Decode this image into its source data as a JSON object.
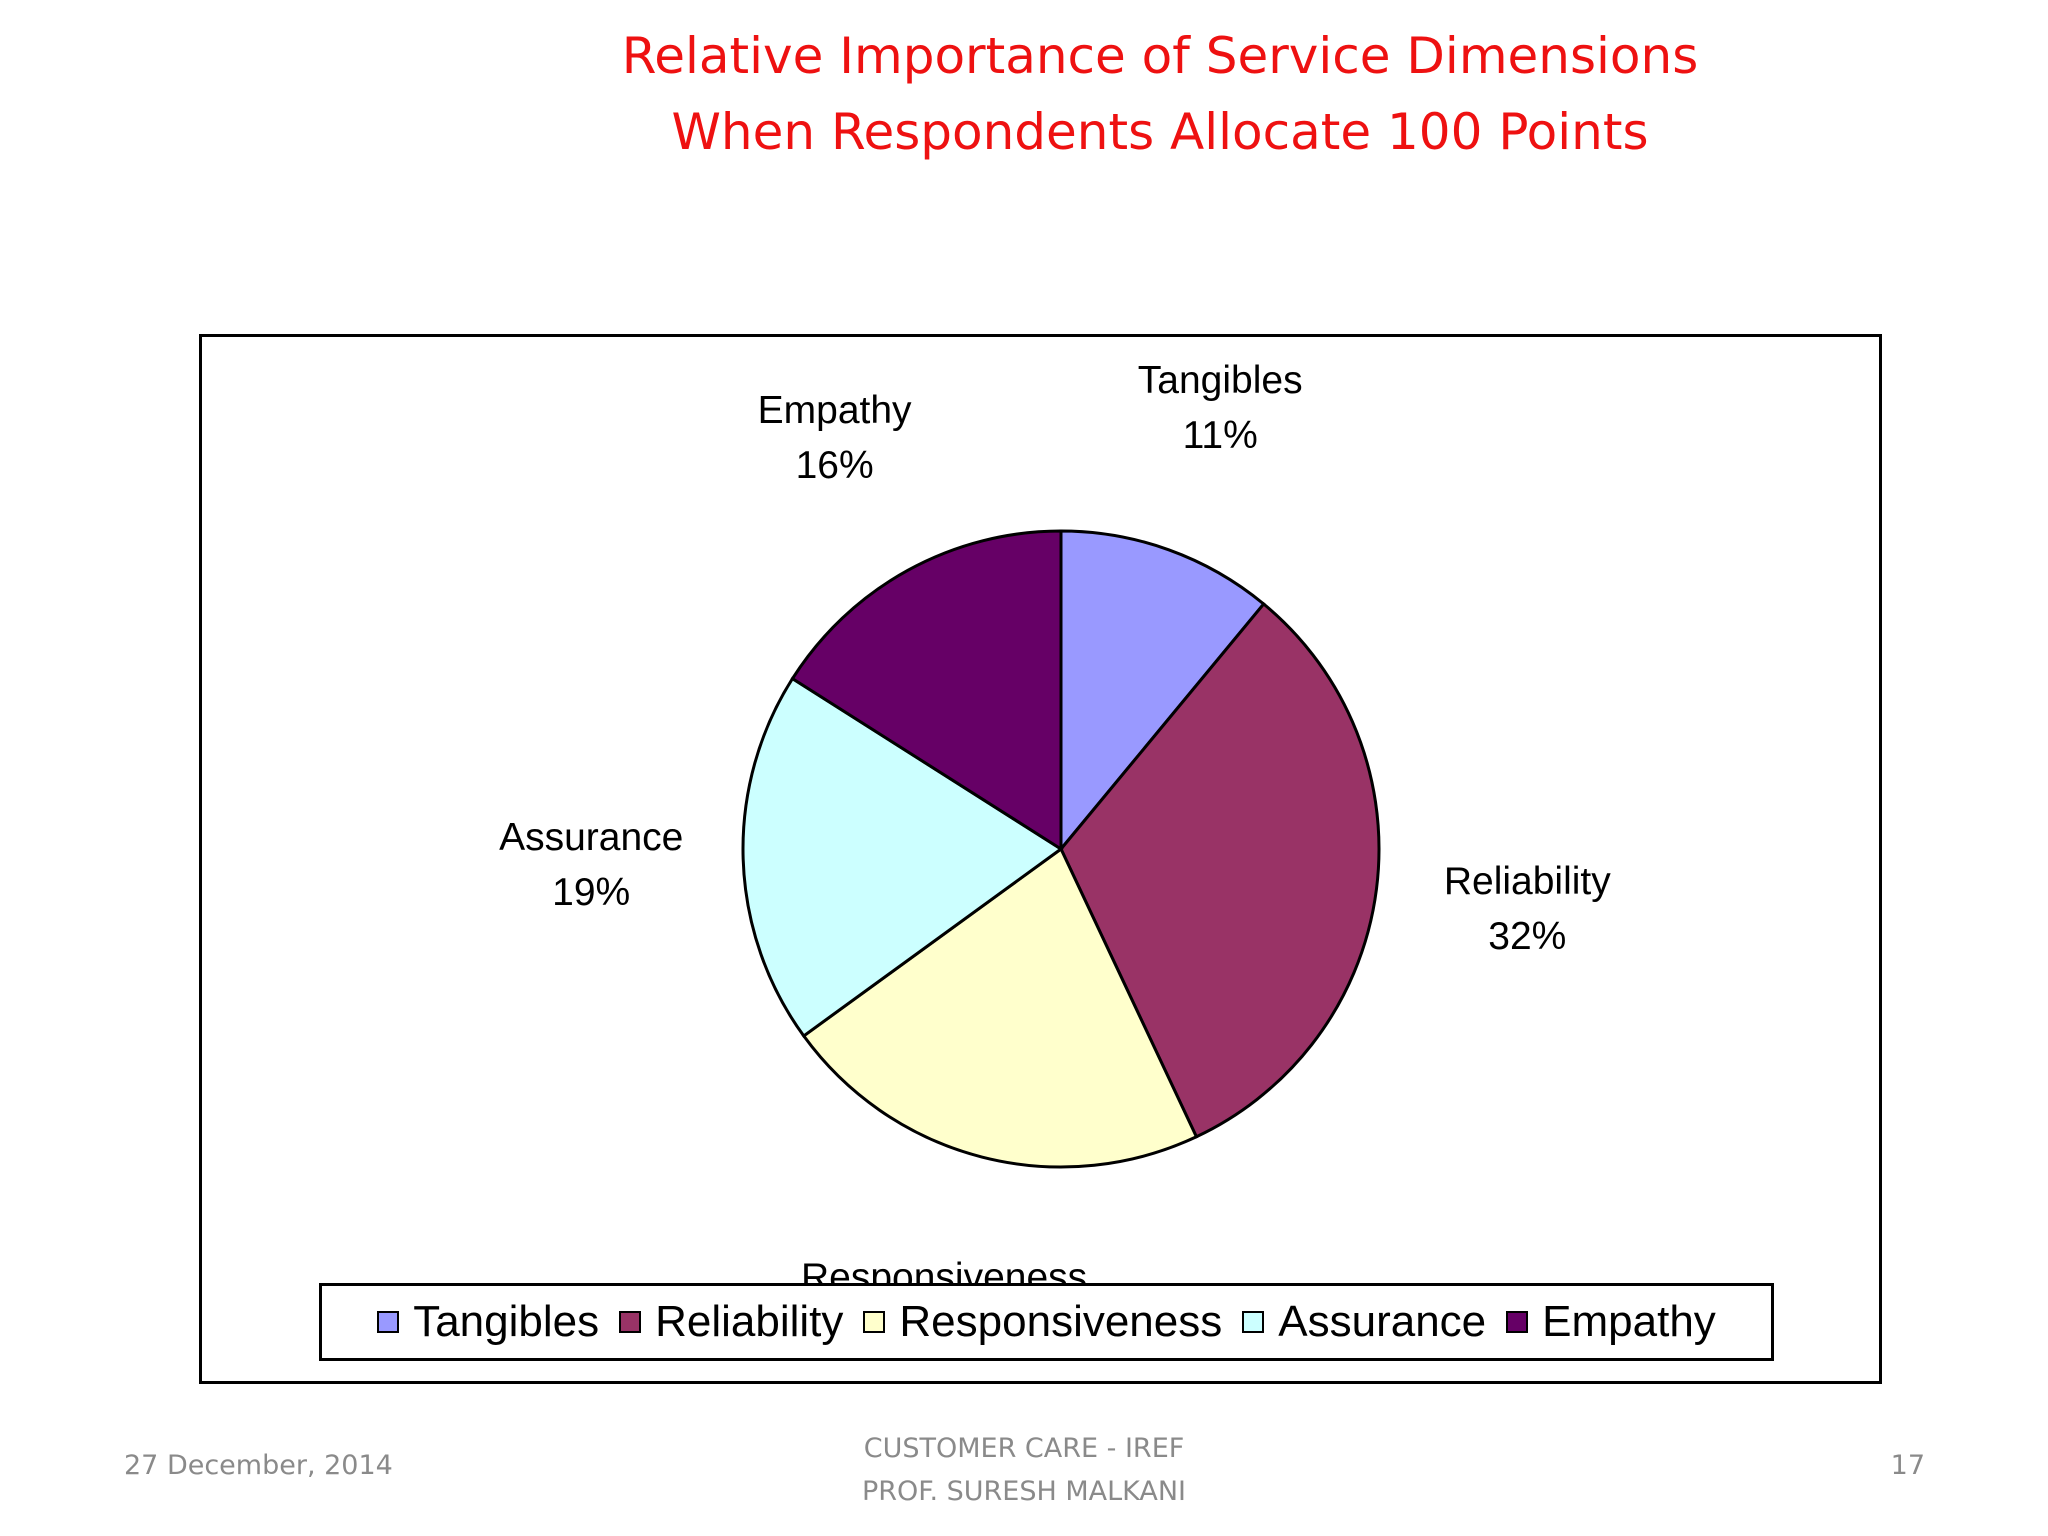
{
  "slide": {
    "title_line1": "Relative Importance of Service Dimensions",
    "title_line2": "When Respondents Allocate 100 Points"
  },
  "footer": {
    "date": "27 December, 2014",
    "center_line1": "CUSTOMER CARE - IREF",
    "center_line2": "PROF. SURESH MALKANI",
    "page": "17"
  },
  "chart_data": {
    "type": "pie",
    "categories": [
      "Tangibles",
      "Reliability",
      "Responsiveness",
      "Assurance",
      "Empathy"
    ],
    "values": [
      11,
      32,
      22,
      19,
      16
    ],
    "value_labels": [
      "11%",
      "32%",
      "22%",
      "19%",
      "16%"
    ],
    "colors": [
      "#9999ff",
      "#993366",
      "#ffffcc",
      "#ccffff",
      "#660066"
    ],
    "start_angle": "12 o'clock",
    "direction": "clockwise",
    "legend_position": "bottom"
  }
}
